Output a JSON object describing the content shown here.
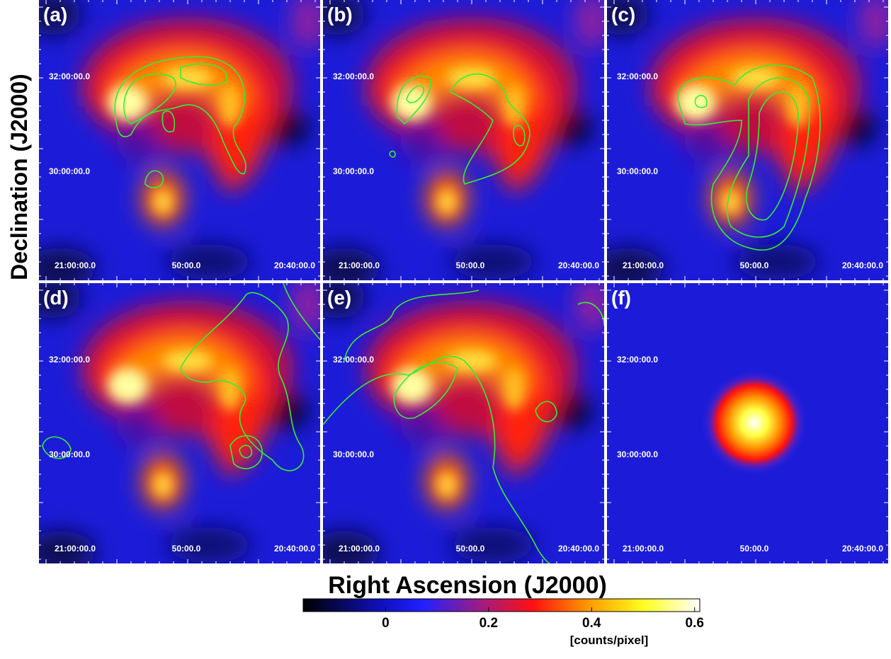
{
  "axes": {
    "x_label": "Right Ascension (J2000)",
    "y_label": "Declination (J2000)"
  },
  "panels": [
    {
      "label": "(a)",
      "dec_ticks": [
        "32:00:00.0",
        "30:00:00.0"
      ],
      "ra_ticks": [
        "21:00:00.0",
        "50:00.0",
        "20:40:00.0"
      ]
    },
    {
      "label": "(b)",
      "dec_ticks": [
        "32:00:00.0",
        "30:00:00.0"
      ],
      "ra_ticks": [
        "21:00:00.0",
        "50:00.0",
        "20:40:00.0"
      ]
    },
    {
      "label": "(c)",
      "dec_ticks": [
        "32:00:00.0",
        "30:00:00.0"
      ],
      "ra_ticks": [
        "21:00:00.0",
        "50:00.0",
        "20:40:00.0"
      ]
    },
    {
      "label": "(d)",
      "dec_ticks": [
        "32:00:00.0",
        "30:00:00.0"
      ],
      "ra_ticks": [
        "21:00:00.0",
        "50:00.0",
        "20:40:00.0"
      ]
    },
    {
      "label": "(e)",
      "dec_ticks": [
        "32:00:00.0",
        "30:00:00.0"
      ],
      "ra_ticks": [
        "21:00:00.0",
        "50:00.0",
        "20:40:00.0"
      ]
    },
    {
      "label": "(f)",
      "dec_ticks": [
        "32:00:00.0",
        "30:00:00.0"
      ],
      "ra_ticks": [
        "21:00:00.0",
        "50:00.0",
        "20:40:00.0"
      ]
    }
  ],
  "colorbar": {
    "lim": [
      -0.16,
      0.61
    ],
    "ticks": [
      0,
      0.2,
      0.4,
      0.6
    ],
    "unit": "[counts/pixel]"
  }
}
